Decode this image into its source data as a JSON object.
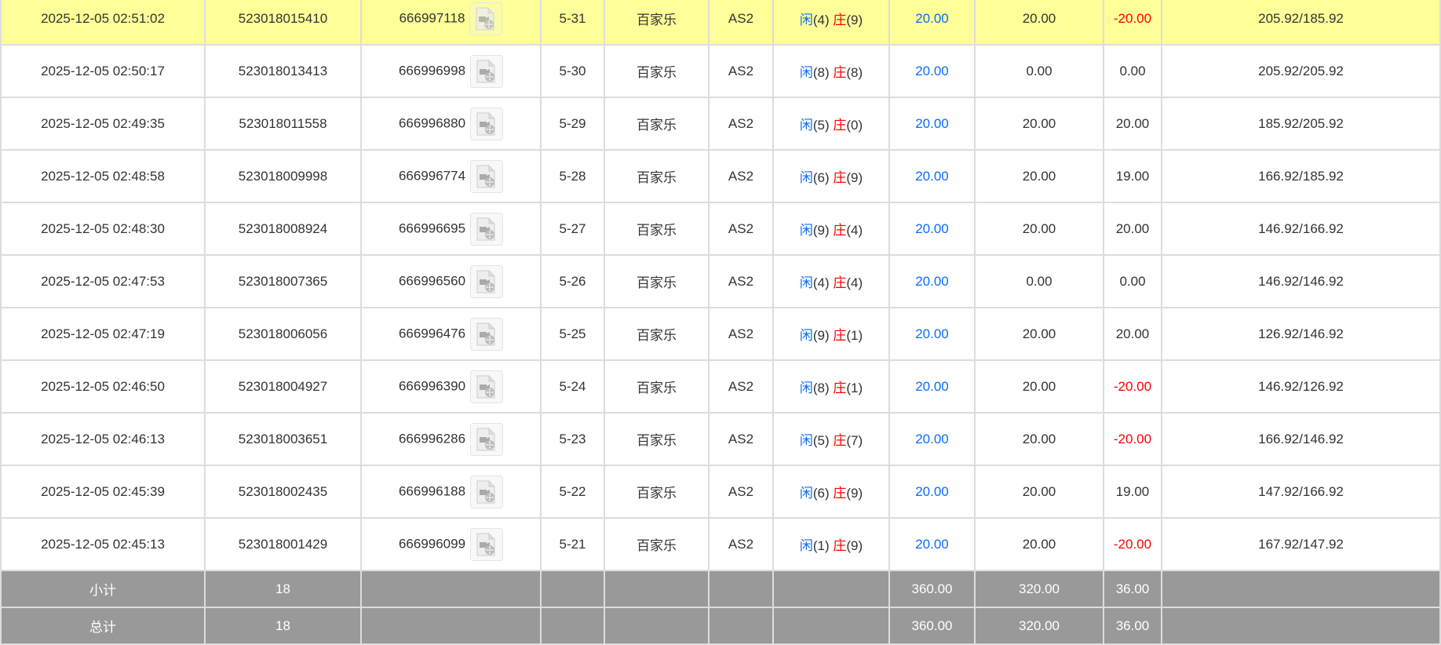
{
  "rows": [
    {
      "time": "2025-12-05 02:51:02",
      "order": "523018015410",
      "round": "666997118",
      "shoe": "5-31",
      "game": "百家乐",
      "table": "AS2",
      "player": "闲",
      "player_pts": "(4)",
      "banker": "庄",
      "banker_pts": "(9)",
      "bet": "20.00",
      "valid": "20.00",
      "win": "-20.00",
      "balance": "205.92/185.92",
      "highlight": true
    },
    {
      "time": "2025-12-05 02:50:17",
      "order": "523018013413",
      "round": "666996998",
      "shoe": "5-30",
      "game": "百家乐",
      "table": "AS2",
      "player": "闲",
      "player_pts": "(8)",
      "banker": "庄",
      "banker_pts": "(8)",
      "bet": "20.00",
      "valid": "0.00",
      "win": "0.00",
      "balance": "205.92/205.92"
    },
    {
      "time": "2025-12-05 02:49:35",
      "order": "523018011558",
      "round": "666996880",
      "shoe": "5-29",
      "game": "百家乐",
      "table": "AS2",
      "player": "闲",
      "player_pts": "(5)",
      "banker": "庄",
      "banker_pts": "(0)",
      "bet": "20.00",
      "valid": "20.00",
      "win": "20.00",
      "balance": "185.92/205.92"
    },
    {
      "time": "2025-12-05 02:48:58",
      "order": "523018009998",
      "round": "666996774",
      "shoe": "5-28",
      "game": "百家乐",
      "table": "AS2",
      "player": "闲",
      "player_pts": "(6)",
      "banker": "庄",
      "banker_pts": "(9)",
      "bet": "20.00",
      "valid": "20.00",
      "win": "19.00",
      "balance": "166.92/185.92"
    },
    {
      "time": "2025-12-05 02:48:30",
      "order": "523018008924",
      "round": "666996695",
      "shoe": "5-27",
      "game": "百家乐",
      "table": "AS2",
      "player": "闲",
      "player_pts": "(9)",
      "banker": "庄",
      "banker_pts": "(4)",
      "bet": "20.00",
      "valid": "20.00",
      "win": "20.00",
      "balance": "146.92/166.92"
    },
    {
      "time": "2025-12-05 02:47:53",
      "order": "523018007365",
      "round": "666996560",
      "shoe": "5-26",
      "game": "百家乐",
      "table": "AS2",
      "player": "闲",
      "player_pts": "(4)",
      "banker": "庄",
      "banker_pts": "(4)",
      "bet": "20.00",
      "valid": "0.00",
      "win": "0.00",
      "balance": "146.92/146.92"
    },
    {
      "time": "2025-12-05 02:47:19",
      "order": "523018006056",
      "round": "666996476",
      "shoe": "5-25",
      "game": "百家乐",
      "table": "AS2",
      "player": "闲",
      "player_pts": "(9)",
      "banker": "庄",
      "banker_pts": "(1)",
      "bet": "20.00",
      "valid": "20.00",
      "win": "20.00",
      "balance": "126.92/146.92"
    },
    {
      "time": "2025-12-05 02:46:50",
      "order": "523018004927",
      "round": "666996390",
      "shoe": "5-24",
      "game": "百家乐",
      "table": "AS2",
      "player": "闲",
      "player_pts": "(8)",
      "banker": "庄",
      "banker_pts": "(1)",
      "bet": "20.00",
      "valid": "20.00",
      "win": "-20.00",
      "balance": "146.92/126.92"
    },
    {
      "time": "2025-12-05 02:46:13",
      "order": "523018003651",
      "round": "666996286",
      "shoe": "5-23",
      "game": "百家乐",
      "table": "AS2",
      "player": "闲",
      "player_pts": "(5)",
      "banker": "庄",
      "banker_pts": "(7)",
      "bet": "20.00",
      "valid": "20.00",
      "win": "-20.00",
      "balance": "166.92/146.92"
    },
    {
      "time": "2025-12-05 02:45:39",
      "order": "523018002435",
      "round": "666996188",
      "shoe": "5-22",
      "game": "百家乐",
      "table": "AS2",
      "player": "闲",
      "player_pts": "(6)",
      "banker": "庄",
      "banker_pts": "(9)",
      "bet": "20.00",
      "valid": "20.00",
      "win": "19.00",
      "balance": "147.92/166.92"
    },
    {
      "time": "2025-12-05 02:45:13",
      "order": "523018001429",
      "round": "666996099",
      "shoe": "5-21",
      "game": "百家乐",
      "table": "AS2",
      "player": "闲",
      "player_pts": "(1)",
      "banker": "庄",
      "banker_pts": "(9)",
      "bet": "20.00",
      "valid": "20.00",
      "win": "-20.00",
      "balance": "167.92/147.92"
    }
  ],
  "subtotal": {
    "label": "小计",
    "count": "18",
    "bet": "360.00",
    "valid": "320.00",
    "win": "36.00"
  },
  "total": {
    "label": "总计",
    "count": "18",
    "bet": "360.00",
    "valid": "320.00",
    "win": "36.00"
  },
  "colors": {
    "highlight": "#ffff99",
    "player": "#0a6cff",
    "banker": "#ff0000",
    "negative": "#ff0000",
    "summary_bg": "#999999"
  },
  "icons": {
    "replay": "video-file-icon"
  }
}
